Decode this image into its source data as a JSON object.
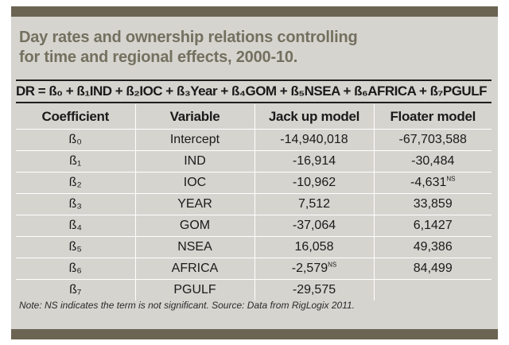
{
  "title_lines": [
    "Day rates and ownership relations controlling",
    "for time and regional effects, 2000-10."
  ],
  "equation": "DR = ß₀ + ß₁IND + ß₂IOC + ß₃Year + ß₄GOM + ß₅NSEA + ß₆AFRICA + ß₇PGULF",
  "table": {
    "headers": [
      "Coefficient",
      "Variable",
      "Jack up model",
      "Floater model"
    ],
    "rows": [
      {
        "coef": "ß₀",
        "variable": "Intercept",
        "jackup": "-14,940,018",
        "jackup_sup": "",
        "floater": "-67,703,588",
        "floater_sup": ""
      },
      {
        "coef": "ß₁",
        "variable": "IND",
        "jackup": "-16,914",
        "jackup_sup": "",
        "floater": "-30,484",
        "floater_sup": ""
      },
      {
        "coef": "ß₂",
        "variable": "IOC",
        "jackup": "-10,962",
        "jackup_sup": "",
        "floater": "-4,631",
        "floater_sup": "NS"
      },
      {
        "coef": "ß₃",
        "variable": "YEAR",
        "jackup": "7,512",
        "jackup_sup": "",
        "floater": "33,859",
        "floater_sup": ""
      },
      {
        "coef": "ß₄",
        "variable": "GOM",
        "jackup": "-37,064",
        "jackup_sup": "",
        "floater": "6,1427",
        "floater_sup": ""
      },
      {
        "coef": "ß₅",
        "variable": "NSEA",
        "jackup": "16,058",
        "jackup_sup": "",
        "floater": "49,386",
        "floater_sup": ""
      },
      {
        "coef": "ß₆",
        "variable": "AFRICA",
        "jackup": "-2,579",
        "jackup_sup": "NS",
        "floater": "84,499",
        "floater_sup": ""
      },
      {
        "coef": "ß₇",
        "variable": "PGULF",
        "jackup": "-29,575",
        "jackup_sup": "",
        "floater": "",
        "floater_sup": ""
      }
    ]
  },
  "note": "Note: NS indicates the term is not significant. Source: Data from RigLogix 2011.",
  "colors": {
    "frame_bar": "#6b6452",
    "panel_background": "#d6d4cf",
    "title_text": "#74705f",
    "grid_lines": "#ffffff"
  }
}
